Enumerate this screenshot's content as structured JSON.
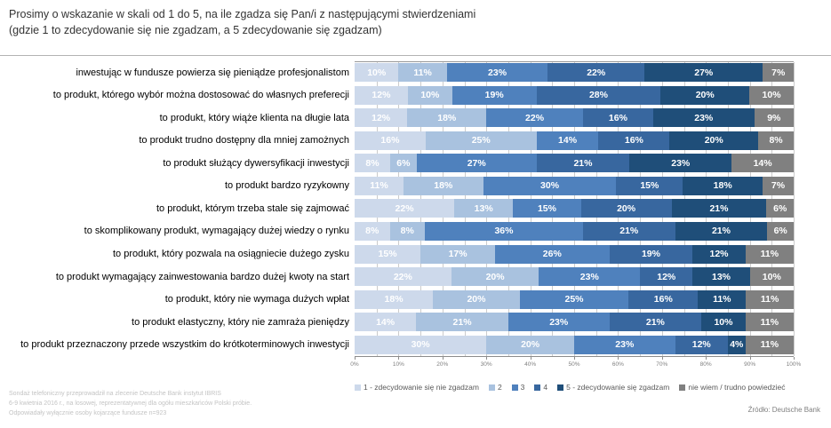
{
  "title": {
    "line1": "Prosimy o wskazanie w skali od 1 do 5, na ile zgadza się Pan/i z następującymi stwierdzeniami",
    "line2": "(gdzie 1 to zdecydowanie się nie zgadzam, a 5 zdecydowanie się zgadzam)"
  },
  "chart_data": {
    "type": "bar",
    "variant": "horizontal-stacked-100",
    "unit": "%",
    "xlim": [
      0,
      100
    ],
    "x_ticks": [
      "0%",
      "10%",
      "20%",
      "30%",
      "40%",
      "50%",
      "60%",
      "70%",
      "80%",
      "90%",
      "100%"
    ],
    "grid": "vertical-minor-5pct",
    "legend_position": "bottom",
    "categories": [
      "inwestując w fundusze powierza się pieniądze profesjonalistom",
      "to produkt, którego wybór można dostosować do własnych preferecji",
      "to produkt, który wiąże klienta na długie lata",
      "to produkt trudno dostępny dla mniej zamożnych",
      "to produkt służący dywersyfikacji inwestycji",
      "to produkt bardzo ryzykowny",
      "to produkt, którym trzeba stale się zajmować",
      "to skomplikowany produkt, wymagający dużej wiedzy o rynku",
      "to produkt, który pozwala na osiągniecie dużego zysku",
      "to produkt wymagający zainwestowania bardzo dużej kwoty na start",
      "to produkt, który nie wymaga dużych wpłat",
      "to produkt elastyczny, który nie zamraża pieniędzy",
      "to produkt przeznaczony przede wszystkim do krótkoterminowych inwestycji"
    ],
    "series": [
      {
        "name": "1 - zdecydowanie się nie zgadzam",
        "color": "#CDD9EB",
        "values": [
          10,
          12,
          12,
          16,
          8,
          11,
          22,
          8,
          15,
          22,
          18,
          14,
          30
        ]
      },
      {
        "name": "2",
        "color": "#A9C2DF",
        "values": [
          11,
          10,
          18,
          25,
          6,
          18,
          13,
          8,
          17,
          20,
          20,
          21,
          20
        ]
      },
      {
        "name": "3",
        "color": "#4F81BD",
        "values": [
          23,
          19,
          22,
          14,
          27,
          30,
          15,
          36,
          26,
          23,
          25,
          23,
          23
        ]
      },
      {
        "name": "4",
        "color": "#38679F",
        "values": [
          22,
          28,
          16,
          16,
          21,
          15,
          20,
          21,
          19,
          12,
          16,
          21,
          12
        ]
      },
      {
        "name": "5 - zdecydowanie się zgadzam",
        "color": "#1F4E79",
        "values": [
          27,
          20,
          23,
          20,
          23,
          18,
          21,
          21,
          12,
          13,
          11,
          10,
          4
        ]
      },
      {
        "name": "nie wiem / trudno powiedzieć",
        "color": "#808080",
        "values": [
          7,
          10,
          9,
          8,
          14,
          7,
          6,
          6,
          11,
          10,
          11,
          11,
          11
        ]
      }
    ]
  },
  "footnote": {
    "lines": [
      "Sondaż telefoniczny przeprowadził na zlecenie Deutsche Bank instytut IBRIS",
      "6-9 kwietnia 2016 r., na losowej, reprezentatywnej dla ogółu mieszkańców Polski próbie.",
      "Odpowiadały wyłącznie osoby kojarzące fundusze n=923"
    ]
  },
  "source": "Źródło: Deutsche Bank"
}
